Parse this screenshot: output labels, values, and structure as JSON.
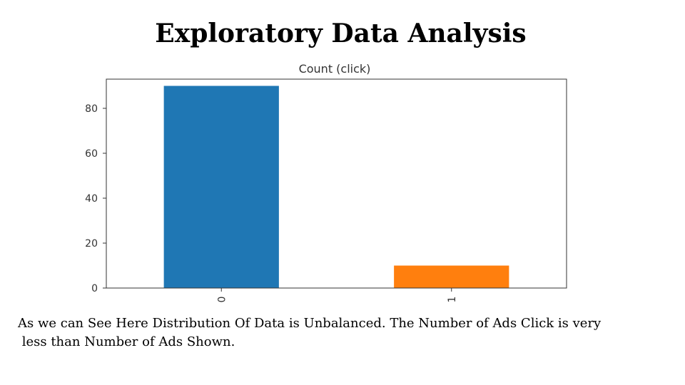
{
  "slide": {
    "title": "Exploratory Data Analysis",
    "caption_line1": "As we can See Here Distribution Of Data is Unbalanced. The Number of Ads Click is very",
    "caption_line2": " less than Number of Ads Shown."
  },
  "chart_data": {
    "type": "bar",
    "title": "Count (click)",
    "xlabel": "",
    "ylabel": "",
    "categories": [
      "0",
      "1"
    ],
    "values": [
      90,
      10
    ],
    "colors": [
      "#1f77b4",
      "#ff7f0e"
    ],
    "ylim": [
      0,
      93
    ],
    "yticks": [
      0,
      20,
      40,
      60,
      80
    ],
    "grid": false,
    "legend": "none"
  }
}
